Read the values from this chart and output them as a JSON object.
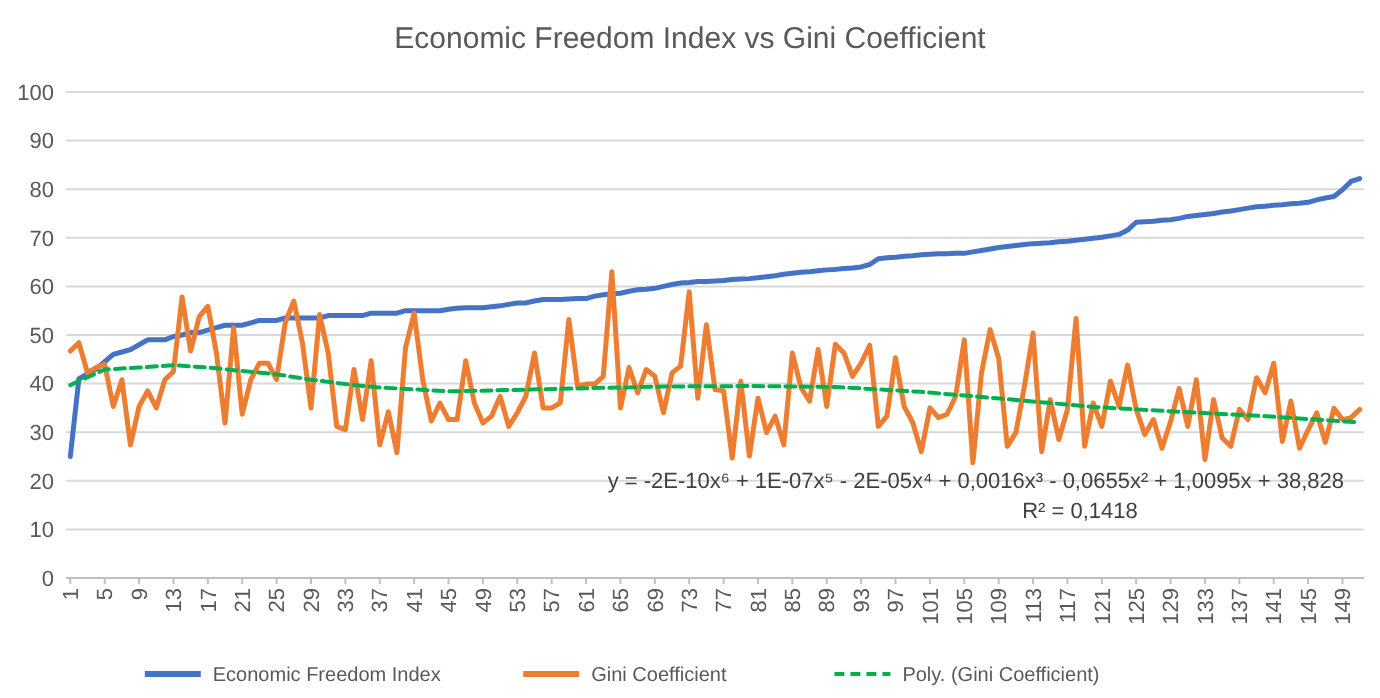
{
  "chart_data": {
    "type": "line",
    "title": "Economic Freedom Index vs Gini Coefficient",
    "x": [
      1,
      2,
      3,
      4,
      5,
      6,
      7,
      8,
      9,
      10,
      11,
      12,
      13,
      14,
      15,
      16,
      17,
      18,
      19,
      20,
      21,
      22,
      23,
      24,
      25,
      26,
      27,
      28,
      29,
      30,
      31,
      32,
      33,
      34,
      35,
      36,
      37,
      38,
      39,
      40,
      41,
      42,
      43,
      44,
      45,
      46,
      47,
      48,
      49,
      50,
      51,
      52,
      53,
      54,
      55,
      56,
      57,
      58,
      59,
      60,
      61,
      62,
      63,
      64,
      65,
      66,
      67,
      68,
      69,
      70,
      71,
      72,
      73,
      74,
      75,
      76,
      77,
      78,
      79,
      80,
      81,
      82,
      83,
      84,
      85,
      86,
      87,
      88,
      89,
      90,
      91,
      92,
      93,
      94,
      95,
      96,
      97,
      98,
      99,
      100,
      101,
      102,
      103,
      104,
      105,
      106,
      107,
      108,
      109,
      110,
      111,
      112,
      113,
      114,
      115,
      116,
      117,
      118,
      119,
      120,
      121,
      122,
      123,
      124,
      125,
      126,
      127,
      128,
      129,
      130,
      131,
      132,
      133,
      134,
      135,
      136,
      137,
      138,
      139,
      140,
      141,
      142,
      143,
      144,
      145,
      146,
      147,
      148,
      149,
      150,
      151
    ],
    "series": [
      {
        "name": "Economic Freedom Index",
        "color": "#4472c4",
        "line_style": "solid",
        "values": [
          25,
          41,
          42,
          43,
          44.5,
          46,
          46.5,
          47,
          48,
          49,
          49,
          49,
          49.7,
          50,
          50.5,
          50.5,
          51,
          51.5,
          52,
          52,
          52,
          52.5,
          53,
          53,
          53,
          53.5,
          53.5,
          53.5,
          53.5,
          53.5,
          54,
          54,
          54,
          54,
          54,
          54.5,
          54.5,
          54.5,
          54.5,
          55,
          55,
          55,
          55,
          55,
          55.3,
          55.5,
          55.6,
          55.6,
          55.6,
          55.8,
          56,
          56.3,
          56.6,
          56.6,
          57,
          57.3,
          57.3,
          57.3,
          57.4,
          57.5,
          57.5,
          58,
          58.3,
          58.5,
          58.6,
          59,
          59.3,
          59.4,
          59.6,
          60,
          60.4,
          60.7,
          60.8,
          61,
          61,
          61.1,
          61.2,
          61.4,
          61.5,
          61.6,
          61.8,
          62,
          62.2,
          62.5,
          62.7,
          62.9,
          63,
          63.2,
          63.4,
          63.5,
          63.7,
          63.8,
          64,
          64.5,
          65.7,
          65.9,
          66,
          66.2,
          66.3,
          66.5,
          66.6,
          66.7,
          66.7,
          66.8,
          66.8,
          67.1,
          67.4,
          67.7,
          68,
          68.2,
          68.4,
          68.6,
          68.8,
          68.9,
          69,
          69.2,
          69.3,
          69.5,
          69.7,
          69.9,
          70.1,
          70.4,
          70.7,
          71.6,
          73.2,
          73.3,
          73.4,
          73.6,
          73.7,
          74,
          74.4,
          74.6,
          74.8,
          75,
          75.3,
          75.5,
          75.8,
          76.1,
          76.4,
          76.5,
          76.7,
          76.8,
          77,
          77.1,
          77.3,
          77.8,
          78.2,
          78.5,
          79.9,
          81.6,
          82.2
        ]
      },
      {
        "name": "Gini Coefficient",
        "color": "#ed7d31",
        "line_style": "solid",
        "values": [
          46.7,
          48.4,
          42.2,
          43.3,
          44,
          35.3,
          40.8,
          27.4,
          35.3,
          38.5,
          35,
          40.8,
          42.5,
          57.8,
          46.7,
          53.8,
          55.9,
          46.3,
          31.9,
          51.5,
          33.7,
          40.8,
          44.2,
          44.2,
          40.8,
          52.5,
          57,
          48.4,
          35,
          54.2,
          46.3,
          31.2,
          30.5,
          42.9,
          32.6,
          44.7,
          27.4,
          34.2,
          25.8,
          47.4,
          54.5,
          40.8,
          32.3,
          36,
          32.6,
          32.6,
          44.7,
          36,
          31.9,
          33.3,
          37.4,
          31.2,
          34,
          37.4,
          46.3,
          35,
          35,
          36,
          53.2,
          39.5,
          39.9,
          39.9,
          41.5,
          63,
          35,
          43.3,
          38.1,
          42.9,
          41.5,
          34,
          42.2,
          43.6,
          58.9,
          37,
          52.1,
          38.8,
          38.5,
          24.7,
          40.5,
          25.1,
          37,
          29.9,
          33.3,
          27.4,
          46.3,
          39.2,
          36.4,
          47,
          35.3,
          48.1,
          46.3,
          41.5,
          44.2,
          47.9,
          31.2,
          33.3,
          45.3,
          35.3,
          32,
          26,
          35,
          33,
          33.7,
          37.4,
          49,
          23.7,
          42.2,
          51.1,
          45.2,
          27.1,
          29.9,
          39.5,
          50.4,
          26,
          36.7,
          28.5,
          34.7,
          53.4,
          27.1,
          36,
          31.2,
          40.5,
          35.3,
          43.8,
          34.7,
          29.5,
          32.6,
          26.7,
          32.2,
          39,
          31.2,
          40.8,
          24.4,
          36.7,
          28.8,
          27.1,
          34.7,
          32.6,
          41.2,
          38.1,
          44.2,
          28.1,
          36.4,
          26.7,
          30.5,
          34,
          27.9,
          34.9,
          32.6,
          33,
          34.7
        ]
      },
      {
        "name": "Poly. (Gini Coefficient)",
        "color": "#00b050",
        "line_style": "dashed",
        "x": [
          1,
          5,
          9,
          13,
          17,
          21,
          25,
          29,
          33,
          37,
          41,
          45,
          50,
          60,
          70,
          80,
          90,
          100,
          110,
          120,
          130,
          140,
          151
        ],
        "values": [
          39.7,
          42.9,
          43.3,
          43.8,
          43.3,
          42.6,
          41.9,
          40.8,
          39.9,
          39.2,
          38.8,
          38.4,
          38.6,
          39,
          39.4,
          39.5,
          39.3,
          38.3,
          36.8,
          35.2,
          34.2,
          33.3,
          32
        ]
      }
    ],
    "xlim": [
      0.5,
      151.5
    ],
    "xticks": [
      1,
      5,
      9,
      13,
      17,
      21,
      25,
      29,
      33,
      37,
      41,
      45,
      49,
      53,
      57,
      61,
      65,
      69,
      73,
      77,
      81,
      85,
      89,
      93,
      97,
      101,
      105,
      109,
      113,
      117,
      121,
      125,
      129,
      133,
      137,
      141,
      145,
      149
    ],
    "ylim": [
      0,
      100
    ],
    "yticks": [
      0,
      10,
      20,
      30,
      40,
      50,
      60,
      70,
      80,
      90,
      100
    ],
    "grid": "y",
    "legend": "bottom",
    "marker": "none",
    "annotations": [
      "y = -2E-10x⁶ + 1E-07x⁵ - 2E-05x⁴ + 0,0016x³ - 0,0655x² + 1,0095x + 38,828",
      "R² = 0,1418"
    ]
  }
}
